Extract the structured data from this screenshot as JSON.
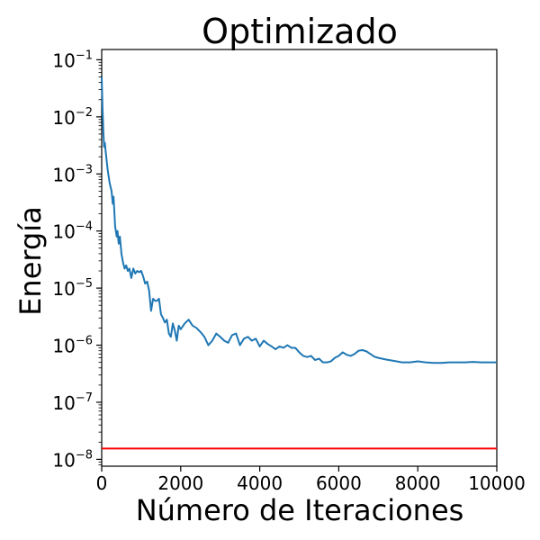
{
  "chart_data": {
    "type": "line",
    "title": "Optimizado",
    "xlabel": "Número de Iteraciones",
    "ylabel": "Energía",
    "xlim": [
      0,
      10000
    ],
    "ylim_log10": [
      -8.12,
      -0.82
    ],
    "y_scale": "log",
    "grid": false,
    "x_ticks": [
      {
        "value": 0,
        "label": "0"
      },
      {
        "value": 2000,
        "label": "2000"
      },
      {
        "value": 4000,
        "label": "4000"
      },
      {
        "value": 6000,
        "label": "6000"
      },
      {
        "value": 8000,
        "label": "8000"
      },
      {
        "value": 10000,
        "label": "10000"
      }
    ],
    "y_ticks": [
      {
        "value": 1e-08,
        "base": "10",
        "exp": "−8"
      },
      {
        "value": 1e-07,
        "base": "10",
        "exp": "−7"
      },
      {
        "value": 1e-06,
        "base": "10",
        "exp": "−6"
      },
      {
        "value": 1e-05,
        "base": "10",
        "exp": "−5"
      },
      {
        "value": 0.0001,
        "base": "10",
        "exp": "−4"
      },
      {
        "value": 0.001,
        "base": "10",
        "exp": "−3"
      },
      {
        "value": 0.01,
        "base": "10",
        "exp": "−2"
      },
      {
        "value": 0.1,
        "base": "10",
        "exp": "−1"
      }
    ],
    "series": [
      {
        "color": "#1f77b4",
        "x": [
          0,
          20,
          40,
          60,
          80,
          100,
          150,
          200,
          250,
          280,
          300,
          340,
          380,
          400,
          430,
          460,
          500,
          540,
          580,
          620,
          660,
          700,
          750,
          800,
          850,
          900,
          950,
          1000,
          1050,
          1100,
          1150,
          1200,
          1250,
          1300,
          1350,
          1400,
          1450,
          1500,
          1550,
          1600,
          1650,
          1700,
          1750,
          1800,
          1850,
          1900,
          1950,
          2000,
          2100,
          2200,
          2300,
          2400,
          2500,
          2600,
          2700,
          2800,
          2900,
          3000,
          3100,
          3200,
          3300,
          3400,
          3500,
          3600,
          3700,
          3800,
          3900,
          4000,
          4100,
          4200,
          4300,
          4400,
          4500,
          4600,
          4700,
          4800,
          4900,
          5000,
          5100,
          5200,
          5300,
          5400,
          5500,
          5600,
          5700,
          5800,
          5900,
          6000,
          6100,
          6200,
          6300,
          6400,
          6500,
          6600,
          6700,
          6800,
          6900,
          7000,
          7200,
          7400,
          7600,
          7800,
          8000,
          8200,
          8400,
          8600,
          8800,
          9000,
          9200,
          9400,
          9600,
          9800,
          10000
        ],
        "y": [
          0.05,
          0.015,
          0.006,
          0.003,
          0.0035,
          0.0025,
          0.0012,
          0.0007,
          0.0005,
          0.0003,
          0.0004,
          0.00012,
          8e-05,
          0.0001,
          6e-05,
          8e-05,
          4e-05,
          2.8e-05,
          2.2e-05,
          2.5e-05,
          2e-05,
          2.2e-05,
          1.5e-05,
          2.2e-05,
          1.8e-05,
          2e-05,
          1.9e-05,
          2e-05,
          1.6e-05,
          1.2e-05,
          1.3e-05,
          9e-06,
          4e-06,
          6.5e-06,
          6e-06,
          6e-06,
          6.5e-06,
          3.5e-06,
          3e-06,
          2.5e-06,
          2.8e-06,
          1.6e-06,
          1.4e-06,
          2.4e-06,
          1.8e-06,
          1.2e-06,
          2.2e-06,
          1.9e-06,
          2.4e-06,
          2.8e-06,
          2.2e-06,
          2e-06,
          1.7e-06,
          1.4e-06,
          1e-06,
          1.2e-06,
          1.6e-06,
          1.4e-06,
          1.2e-06,
          1.1e-06,
          1.5e-06,
          1.6e-06,
          1e-06,
          1.3e-06,
          1.4e-06,
          1.2e-06,
          1.3e-06,
          9.5e-07,
          1.2e-06,
          1.05e-06,
          9.5e-07,
          8.5e-07,
          9.5e-07,
          9e-07,
          1e-06,
          9e-07,
          9e-07,
          7.5e-07,
          6.5e-07,
          6.2e-07,
          6.5e-07,
          5.5e-07,
          5.8e-07,
          5e-07,
          5e-07,
          5.2e-07,
          6e-07,
          6.5e-07,
          7.5e-07,
          6.8e-07,
          6.5e-07,
          7e-07,
          8e-07,
          8.2e-07,
          7.8e-07,
          7e-07,
          6.3e-07,
          6e-07,
          5.6e-07,
          5.3e-07,
          5e-07,
          5e-07,
          5.2e-07,
          5e-07,
          4.9e-07,
          4.9e-07,
          5e-07,
          5e-07,
          5e-07,
          5.1e-07,
          5e-07,
          5e-07,
          5e-07
        ]
      },
      {
        "color": "#ff0000",
        "x": [
          0,
          10000
        ],
        "y": [
          1.55e-08,
          1.55e-08
        ]
      }
    ]
  }
}
